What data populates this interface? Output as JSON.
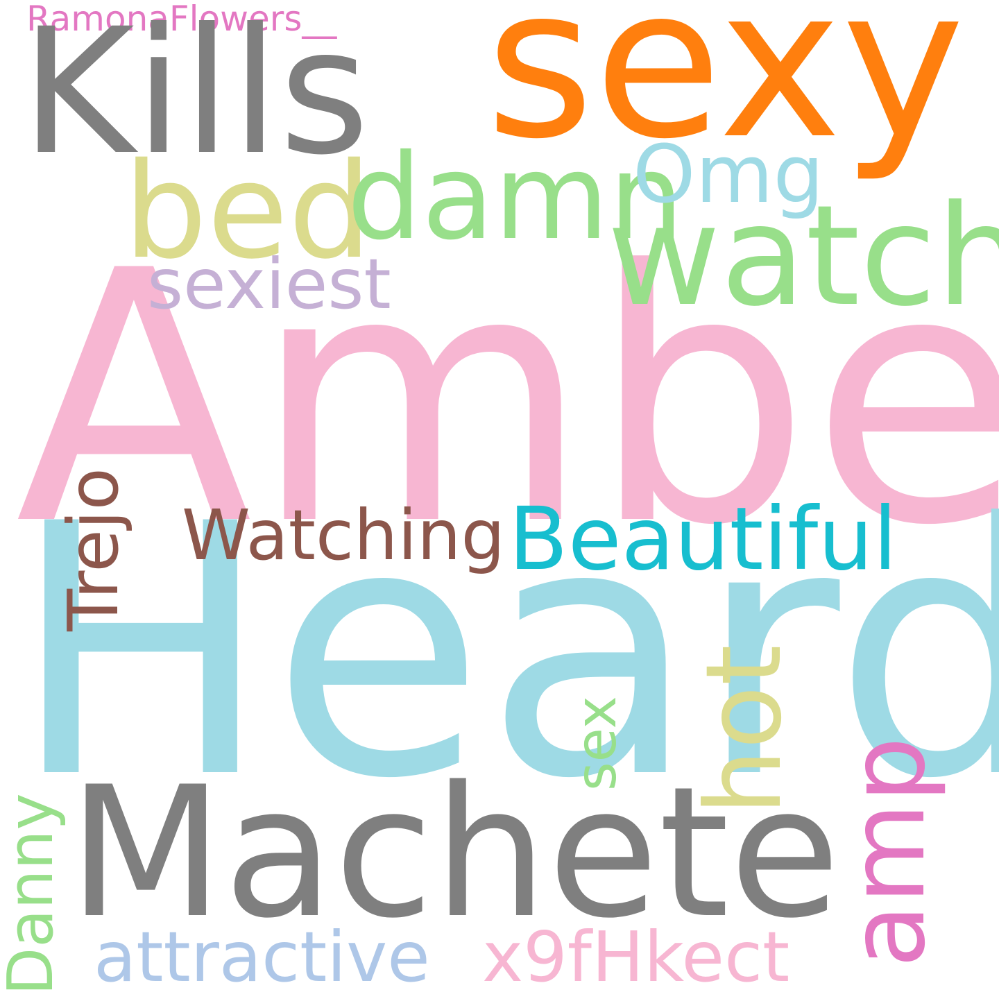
{
  "words": {
    "ramona": {
      "text": "RamonaFlowers__",
      "color": "#e377c2"
    },
    "kills": {
      "text": "Kills",
      "color": "#7f7f7f"
    },
    "sexy": {
      "text": "sexy",
      "color": "#ff7f0e"
    },
    "bed": {
      "text": "bed",
      "color": "#dbdb8d"
    },
    "damn": {
      "text": "damn",
      "color": "#98df8a"
    },
    "omg": {
      "text": "Omg",
      "color": "#9edae5"
    },
    "watch": {
      "text": "watch",
      "color": "#98df8a"
    },
    "sexiest": {
      "text": "sexiest",
      "color": "#c5b0d5"
    },
    "amber": {
      "text": "Amber",
      "color": "#f7b6d2"
    },
    "watching": {
      "text": "Watching",
      "color": "#8c564b"
    },
    "beautiful": {
      "text": "Beautiful",
      "color": "#17becf"
    },
    "heard": {
      "text": "Heard",
      "color": "#9edae5"
    },
    "trejo": {
      "text": "Trejo",
      "color": "#8c564b"
    },
    "hot": {
      "text": "hot",
      "color": "#dbdb8d"
    },
    "sex": {
      "text": "sex",
      "color": "#98df8a"
    },
    "machete": {
      "text": "Machete",
      "color": "#7f7f7f"
    },
    "amp": {
      "text": "amp",
      "color": "#e377c2"
    },
    "danny": {
      "text": "Danny",
      "color": "#98df8a"
    },
    "attractive": {
      "text": "attractive",
      "color": "#aec7e8"
    },
    "x9fhkect": {
      "text": "x9fHkect",
      "color": "#f7b6d2"
    }
  }
}
